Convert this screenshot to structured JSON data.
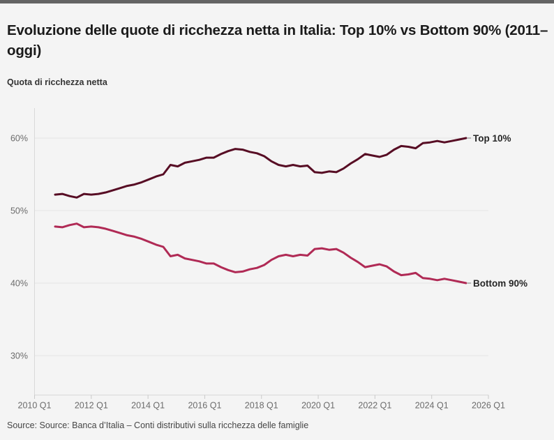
{
  "header": {
    "title": "Evoluzione delle quote di ricchezza netta in Italia: Top 10% vs Bottom 90% (2011–oggi)",
    "subtitle": "Quota di ricchezza netta"
  },
  "footer": {
    "source": "Source: Source: Banca d’Italia – Conti distributivi sulla ricchezza delle famiglie"
  },
  "colors": {
    "background": "#f4f4f4",
    "top_accent_bar": "#646464",
    "gridline": "#e3e3e3",
    "axis_line": "#d8d8d8",
    "tick": "#c9c9c9",
    "axis_text": "#6b6b6b",
    "end_label_text": "#262626",
    "connector": "#8a8a8a"
  },
  "chart_data": {
    "type": "line",
    "title": "Evoluzione delle quote di ricchezza netta in Italia: Top 10% vs Bottom 90% (2011–oggi)",
    "ylabel": "Quota di ricchezza netta",
    "grid": "horizontal",
    "legend_position": "end-of-line labels",
    "y_ticks": [
      60,
      50,
      40,
      30
    ],
    "y_tick_labels": [
      "60%",
      "50%",
      "40%",
      "30%"
    ],
    "ylim": [
      25,
      64
    ],
    "x_tick_labels": [
      "2010 Q1",
      "2012 Q1",
      "2014 Q1",
      "2016 Q1",
      "2018 Q1",
      "2020 Q1",
      "2022 Q1",
      "2024 Q1",
      "2026 Q1"
    ],
    "categories": [
      "2011 Q1",
      "2011 Q2",
      "2011 Q3",
      "2011 Q4",
      "2012 Q1",
      "2012 Q2",
      "2012 Q3",
      "2012 Q4",
      "2013 Q1",
      "2013 Q2",
      "2013 Q3",
      "2013 Q4",
      "2014 Q1",
      "2014 Q2",
      "2014 Q3",
      "2014 Q4",
      "2015 Q1",
      "2015 Q2",
      "2015 Q3",
      "2015 Q4",
      "2016 Q1",
      "2016 Q2",
      "2016 Q3",
      "2016 Q4",
      "2017 Q1",
      "2017 Q2",
      "2017 Q3",
      "2017 Q4",
      "2018 Q1",
      "2018 Q2",
      "2018 Q3",
      "2018 Q4",
      "2019 Q1",
      "2019 Q2",
      "2019 Q3",
      "2019 Q4",
      "2020 Q1",
      "2020 Q2",
      "2020 Q3",
      "2020 Q4",
      "2021 Q1",
      "2021 Q2",
      "2021 Q3",
      "2021 Q4",
      "2022 Q1",
      "2022 Q2",
      "2022 Q3",
      "2022 Q4",
      "2023 Q1",
      "2023 Q2",
      "2023 Q3",
      "2023 Q4",
      "2024 Q1",
      "2024 Q2",
      "2024 Q3",
      "2024 Q4",
      "2025 Q1",
      "2025 Q2"
    ],
    "series": [
      {
        "name": "Top 10%",
        "color": "#570d24",
        "values": [
          52.2,
          52.3,
          52.0,
          51.8,
          52.3,
          52.2,
          52.3,
          52.5,
          52.8,
          53.1,
          53.4,
          53.6,
          53.9,
          54.3,
          54.7,
          55.0,
          56.3,
          56.1,
          56.6,
          56.8,
          57.0,
          57.3,
          57.3,
          57.8,
          58.2,
          58.5,
          58.4,
          58.1,
          57.9,
          57.5,
          56.8,
          56.3,
          56.1,
          56.3,
          56.1,
          56.2,
          55.3,
          55.2,
          55.4,
          55.3,
          55.8,
          56.5,
          57.1,
          57.8,
          57.6,
          57.4,
          57.7,
          58.4,
          58.9,
          58.8,
          58.6,
          59.3,
          59.4,
          59.6,
          59.4,
          59.6,
          59.8,
          60.0
        ]
      },
      {
        "name": "Bottom 90%",
        "color": "#b02a55",
        "values": [
          47.8,
          47.7,
          48.0,
          48.2,
          47.7,
          47.8,
          47.7,
          47.5,
          47.2,
          46.9,
          46.6,
          46.4,
          46.1,
          45.7,
          45.3,
          45.0,
          43.7,
          43.9,
          43.4,
          43.2,
          43.0,
          42.7,
          42.7,
          42.2,
          41.8,
          41.5,
          41.6,
          41.9,
          42.1,
          42.5,
          43.2,
          43.7,
          43.9,
          43.7,
          43.9,
          43.8,
          44.7,
          44.8,
          44.6,
          44.7,
          44.2,
          43.5,
          42.9,
          42.2,
          42.4,
          42.6,
          42.3,
          41.6,
          41.1,
          41.2,
          41.4,
          40.7,
          40.6,
          40.4,
          40.6,
          40.4,
          40.2,
          40.0
        ]
      }
    ]
  }
}
